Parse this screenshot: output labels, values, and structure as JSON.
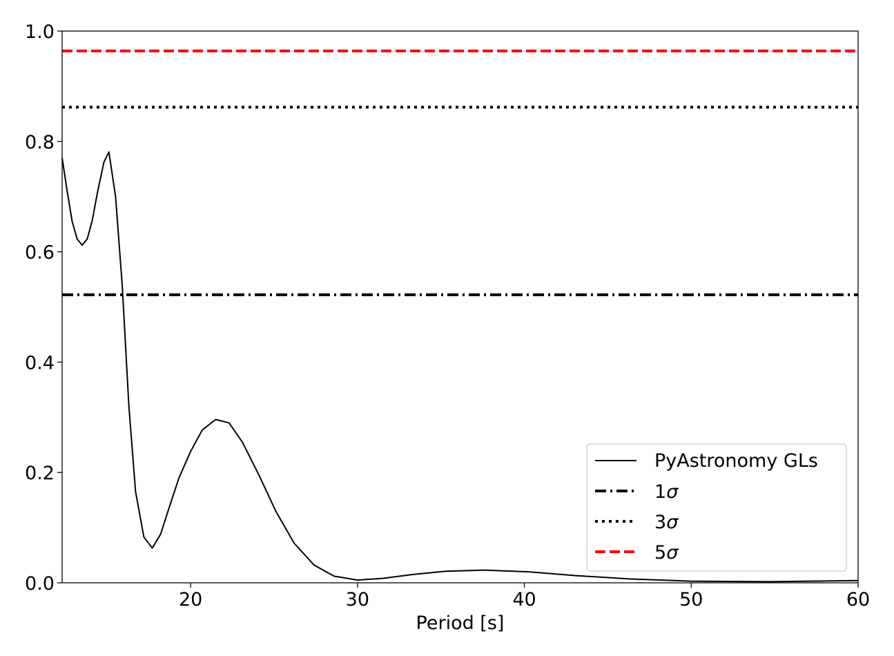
{
  "chart_data": {
    "type": "line",
    "xlabel": "Period [s]",
    "ylabel": "",
    "xlim": [
      12.3,
      60
    ],
    "ylim": [
      0,
      1.0
    ],
    "x_ticks": [
      20,
      30,
      40,
      50,
      60
    ],
    "x_tick_labels": [
      "20",
      "30",
      "40",
      "50",
      "60"
    ],
    "y_ticks": [
      0.0,
      0.2,
      0.4,
      0.6,
      0.8,
      1.0
    ],
    "y_tick_labels": [
      "0.0",
      "0.2",
      "0.4",
      "0.6",
      "0.8",
      "1.0"
    ],
    "grid": false,
    "legend_position": "lower-right",
    "series": [
      {
        "name": "PyAstronomy GLs",
        "color": "#000000",
        "style": "solid",
        "x": [
          12.3,
          12.6,
          12.9,
          13.2,
          13.5,
          13.8,
          14.1,
          14.4,
          14.8,
          15.1,
          15.5,
          15.9,
          16.3,
          16.7,
          17.2,
          17.7,
          18.2,
          18.7,
          19.3,
          20.0,
          20.7,
          21.5,
          22.3,
          23.1,
          24.1,
          25.1,
          26.2,
          27.4,
          28.6,
          30.0,
          31.5,
          33.3,
          35.3,
          37.6,
          40.2,
          43.1,
          46.3,
          50.0,
          54.6,
          60.0
        ],
        "y": [
          0.77,
          0.71,
          0.655,
          0.623,
          0.612,
          0.623,
          0.656,
          0.705,
          0.762,
          0.781,
          0.7,
          0.54,
          0.32,
          0.165,
          0.083,
          0.063,
          0.088,
          0.135,
          0.19,
          0.238,
          0.277,
          0.296,
          0.29,
          0.255,
          0.195,
          0.13,
          0.072,
          0.032,
          0.012,
          0.005,
          0.008,
          0.015,
          0.021,
          0.023,
          0.02,
          0.013,
          0.007,
          0.003,
          0.002,
          0.004
        ]
      },
      {
        "name": "1σ",
        "label_main": "1",
        "label_sym": "σ",
        "color": "#000000",
        "style": "dashdot",
        "y": 0.522
      },
      {
        "name": "3σ",
        "label_main": "3",
        "label_sym": "σ",
        "color": "#000000",
        "style": "dotted",
        "y": 0.862
      },
      {
        "name": "5σ",
        "label_main": "5",
        "label_sym": "σ",
        "color": "#ff0000",
        "style": "dashed",
        "y": 0.964
      }
    ]
  }
}
